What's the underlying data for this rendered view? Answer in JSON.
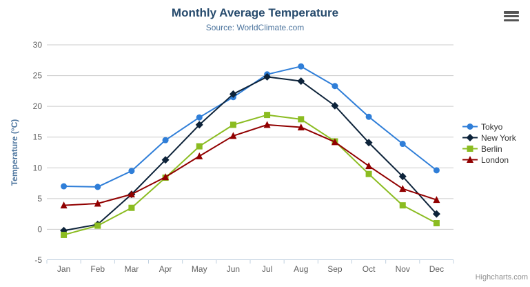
{
  "header": {
    "title": "Monthly Average Temperature",
    "subtitle": "Source: WorldClimate.com"
  },
  "export_menu": {
    "icon": "hamburger-icon"
  },
  "credits": "Highcharts.com",
  "colors": {
    "title": "#274b6d",
    "subtitle": "#4d759e",
    "axis_title": "#4d759e",
    "axis_labels": "#606060",
    "gridline": "#cccccc",
    "axis_line": "#c0d0e0",
    "legend_text": "#333333"
  },
  "chart_data": {
    "type": "line",
    "title": "Monthly Average Temperature",
    "subtitle": "Source: WorldClimate.com",
    "xlabel": "",
    "ylabel": "Temperature (°C)",
    "categories": [
      "Jan",
      "Feb",
      "Mar",
      "Apr",
      "May",
      "Jun",
      "Jul",
      "Aug",
      "Sep",
      "Oct",
      "Nov",
      "Dec"
    ],
    "ylim": [
      -5,
      30
    ],
    "ytick_step": 5,
    "yticks": [
      -5,
      0,
      5,
      10,
      15,
      20,
      25,
      30
    ],
    "grid": true,
    "legend_position": "right",
    "series": [
      {
        "name": "Tokyo",
        "color": "#2f7ed8",
        "marker": "circle",
        "values": [
          7.0,
          6.9,
          9.5,
          14.5,
          18.2,
          21.5,
          25.2,
          26.5,
          23.3,
          18.3,
          13.9,
          9.6
        ]
      },
      {
        "name": "New York",
        "color": "#0d233a",
        "marker": "diamond",
        "values": [
          -0.2,
          0.8,
          5.7,
          11.3,
          17.0,
          22.0,
          24.8,
          24.1,
          20.1,
          14.1,
          8.6,
          2.5
        ]
      },
      {
        "name": "Berlin",
        "color": "#8bbc21",
        "marker": "square",
        "values": [
          -0.9,
          0.6,
          3.5,
          8.4,
          13.5,
          17.0,
          18.6,
          17.9,
          14.3,
          9.0,
          3.9,
          1.0
        ]
      },
      {
        "name": "London",
        "color": "#910000",
        "marker": "triangle",
        "values": [
          3.9,
          4.2,
          5.7,
          8.5,
          11.9,
          15.2,
          17.0,
          16.6,
          14.2,
          10.3,
          6.6,
          4.8
        ]
      }
    ]
  }
}
